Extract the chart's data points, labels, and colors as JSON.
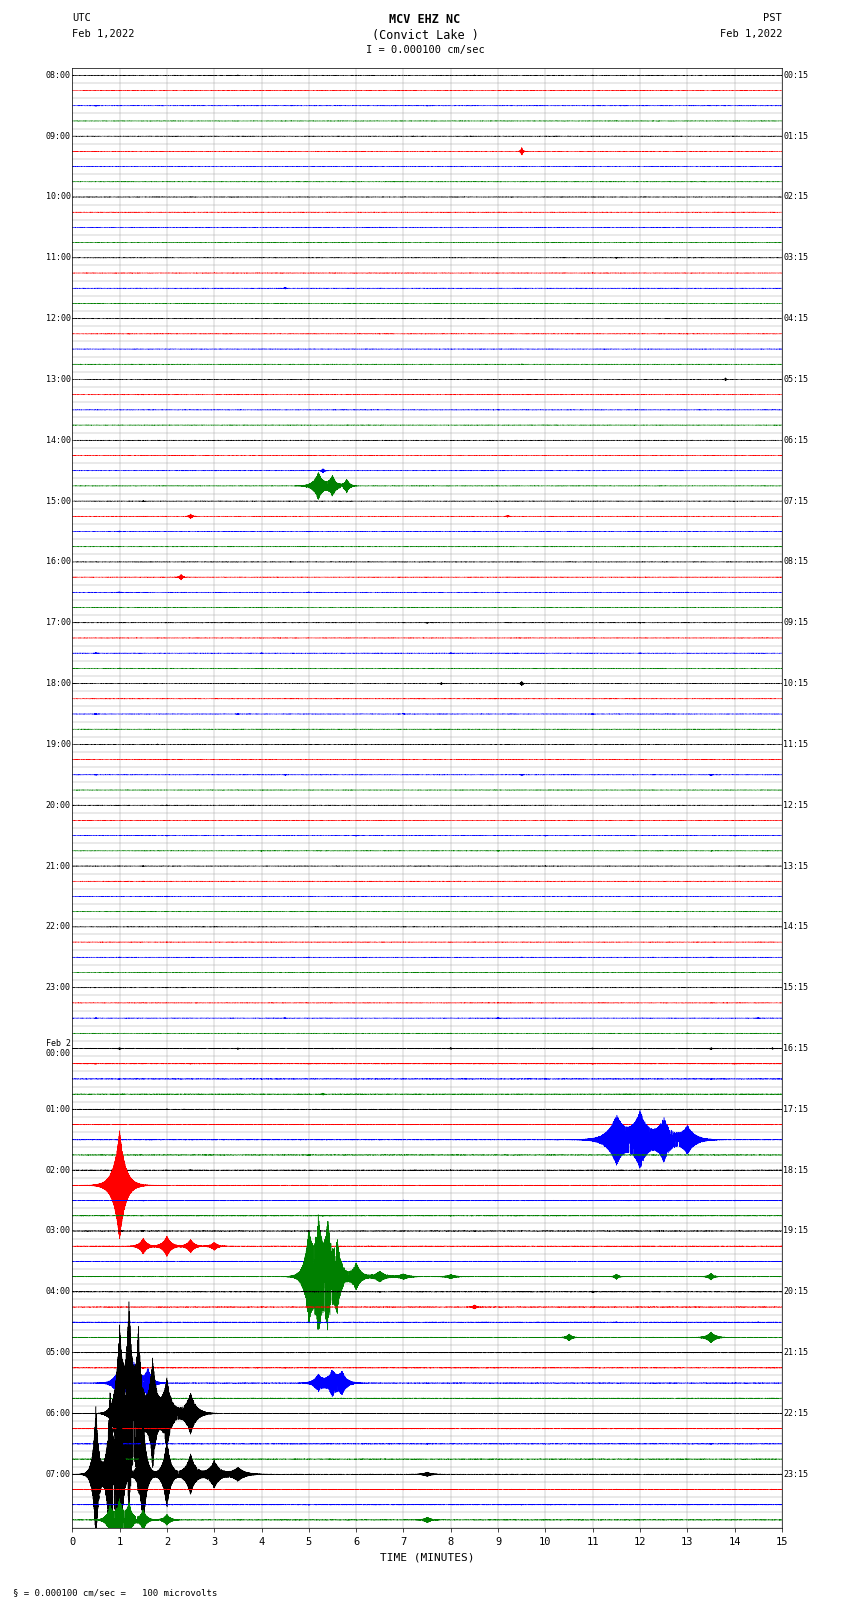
{
  "title_line1": "MCV EHZ NC",
  "title_line2": "(Convict Lake )",
  "title_scale": "I = 0.000100 cm/sec",
  "left_header_line1": "UTC",
  "left_header_line2": "Feb 1,2022",
  "right_header_line1": "PST",
  "right_header_line2": "Feb 1,2022",
  "bottom_xlabel": "TIME (MINUTES)",
  "bottom_note": "= 0.000100 cm/sec =   100 microvolts",
  "row_colors": [
    "black",
    "red",
    "blue",
    "green"
  ],
  "fig_width": 8.5,
  "fig_height": 16.13
}
